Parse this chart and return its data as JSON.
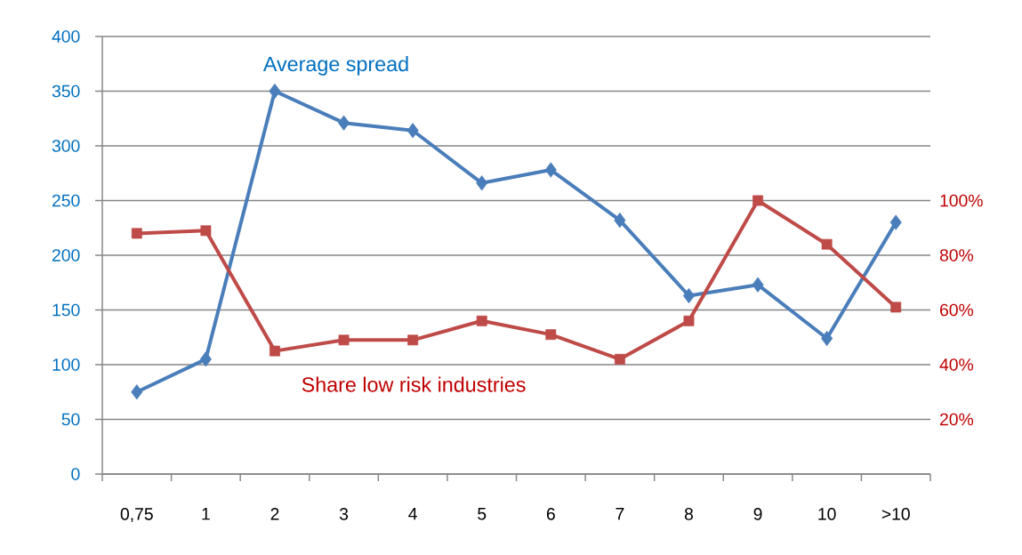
{
  "chart_data": {
    "type": "line",
    "categories": [
      "0,75",
      "1",
      "2",
      "3",
      "4",
      "5",
      "6",
      "7",
      "8",
      "9",
      "10",
      ">10"
    ],
    "series": [
      {
        "name": "Average spread",
        "color": "#4a7ebb",
        "marker": "diamond",
        "values": [
          75,
          105,
          350,
          321,
          314,
          266,
          278,
          232,
          163,
          173,
          124,
          230
        ]
      },
      {
        "name": "Share low risk industries",
        "color": "#be4b48",
        "marker": "square",
        "axis": "y2",
        "values": [
          88,
          89,
          45,
          49,
          49,
          56,
          51,
          42,
          56,
          100,
          84,
          61
        ]
      }
    ],
    "ylim": [
      0,
      400
    ],
    "yticks": [
      0,
      50,
      100,
      150,
      200,
      250,
      300,
      350,
      400
    ],
    "y2lim": [
      0,
      160
    ],
    "y2ticks": [
      {
        "value": 20,
        "label": "20%"
      },
      {
        "value": 40,
        "label": "40%"
      },
      {
        "value": 60,
        "label": "60%"
      },
      {
        "value": 80,
        "label": "80%"
      },
      {
        "value": 100,
        "label": "100%"
      }
    ],
    "grid": "y",
    "legend": false,
    "line_style": "solid"
  }
}
